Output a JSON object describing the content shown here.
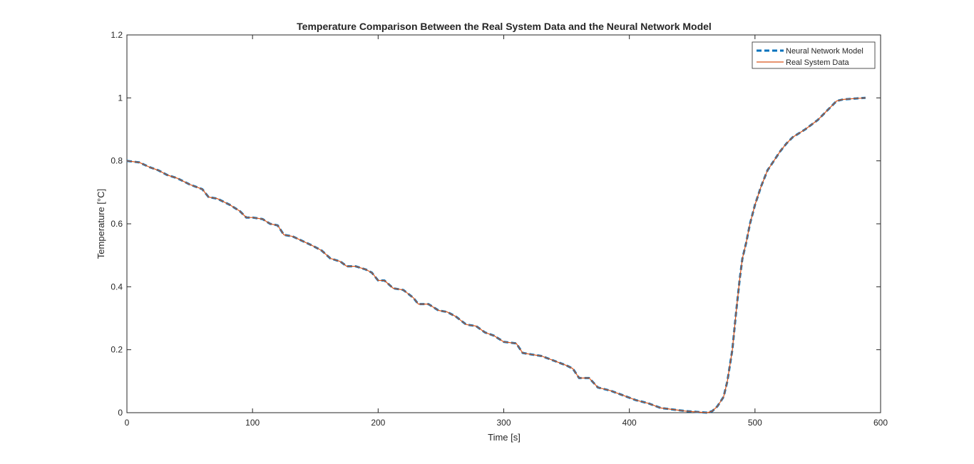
{
  "chart_data": {
    "type": "line",
    "title": "Temperature Comparison Between the Real System Data and the Neural Network Model",
    "xlabel": "Time [s]",
    "ylabel": "Temperature [°C]",
    "xlim": [
      0,
      600
    ],
    "ylim": [
      0,
      1.2
    ],
    "xticks": [
      0,
      100,
      200,
      300,
      400,
      500,
      600
    ],
    "xtick_labels": [
      "0",
      "100",
      "200",
      "300",
      "400",
      "500",
      "600"
    ],
    "yticks": [
      0,
      0.2,
      0.4,
      0.6,
      0.8,
      1,
      1.2
    ],
    "ytick_labels": [
      "0",
      "0.2",
      "0.4",
      "0.6",
      "0.8",
      "1",
      "1.2"
    ],
    "grid": false,
    "legend_position": "top-right",
    "series": [
      {
        "name": "Neural Network Model",
        "color": "#0072BD",
        "style": "dashed",
        "x": [
          0,
          10,
          18,
          25,
          32,
          40,
          50,
          60,
          65,
          72,
          82,
          90,
          95,
          100,
          108,
          114,
          120,
          125,
          132,
          140,
          148,
          155,
          162,
          170,
          175,
          182,
          190,
          195,
          200,
          205,
          212,
          220,
          228,
          232,
          240,
          248,
          255,
          262,
          270,
          278,
          285,
          292,
          300,
          310,
          315,
          322,
          330,
          340,
          350,
          355,
          360,
          368,
          375,
          385,
          395,
          405,
          415,
          425,
          435,
          445,
          455,
          462,
          466,
          470,
          475,
          478,
          482,
          485,
          488,
          490,
          493,
          496,
          500,
          505,
          510,
          515,
          520,
          525,
          530,
          540,
          550,
          560,
          565,
          570,
          580,
          588
        ],
        "y": [
          0.8,
          0.795,
          0.78,
          0.77,
          0.755,
          0.745,
          0.725,
          0.71,
          0.685,
          0.68,
          0.66,
          0.64,
          0.62,
          0.62,
          0.615,
          0.6,
          0.595,
          0.565,
          0.56,
          0.545,
          0.53,
          0.515,
          0.49,
          0.48,
          0.465,
          0.465,
          0.455,
          0.445,
          0.42,
          0.42,
          0.395,
          0.39,
          0.365,
          0.345,
          0.345,
          0.325,
          0.32,
          0.305,
          0.28,
          0.275,
          0.255,
          0.245,
          0.225,
          0.22,
          0.19,
          0.185,
          0.18,
          0.165,
          0.15,
          0.14,
          0.11,
          0.11,
          0.08,
          0.07,
          0.055,
          0.04,
          0.03,
          0.015,
          0.01,
          0.005,
          0.002,
          0.0,
          0.005,
          0.02,
          0.05,
          0.1,
          0.2,
          0.32,
          0.43,
          0.49,
          0.54,
          0.6,
          0.66,
          0.72,
          0.77,
          0.8,
          0.83,
          0.855,
          0.875,
          0.9,
          0.93,
          0.97,
          0.99,
          0.995,
          0.998,
          1.0
        ]
      },
      {
        "name": "Real System Data",
        "color": "#D95319",
        "style": "solid",
        "x": [
          0,
          10,
          18,
          25,
          32,
          40,
          50,
          60,
          65,
          72,
          82,
          90,
          95,
          100,
          108,
          114,
          120,
          125,
          132,
          140,
          148,
          155,
          162,
          170,
          175,
          182,
          190,
          195,
          200,
          205,
          212,
          220,
          228,
          232,
          240,
          248,
          255,
          262,
          270,
          278,
          285,
          292,
          300,
          310,
          315,
          322,
          330,
          340,
          350,
          355,
          360,
          368,
          375,
          385,
          395,
          405,
          415,
          425,
          435,
          445,
          455,
          462,
          466,
          470,
          475,
          478,
          482,
          485,
          488,
          490,
          493,
          496,
          500,
          505,
          510,
          515,
          520,
          525,
          530,
          540,
          550,
          560,
          565,
          570,
          580,
          588
        ],
        "y": [
          0.8,
          0.795,
          0.78,
          0.77,
          0.755,
          0.745,
          0.725,
          0.71,
          0.685,
          0.68,
          0.66,
          0.64,
          0.62,
          0.62,
          0.615,
          0.6,
          0.595,
          0.565,
          0.56,
          0.545,
          0.53,
          0.515,
          0.49,
          0.48,
          0.465,
          0.465,
          0.455,
          0.445,
          0.42,
          0.42,
          0.395,
          0.39,
          0.365,
          0.345,
          0.345,
          0.325,
          0.32,
          0.305,
          0.28,
          0.275,
          0.255,
          0.245,
          0.225,
          0.22,
          0.19,
          0.185,
          0.18,
          0.165,
          0.15,
          0.14,
          0.11,
          0.11,
          0.08,
          0.07,
          0.055,
          0.04,
          0.03,
          0.015,
          0.01,
          0.005,
          0.002,
          0.0,
          0.005,
          0.02,
          0.05,
          0.1,
          0.2,
          0.32,
          0.43,
          0.49,
          0.54,
          0.6,
          0.66,
          0.72,
          0.77,
          0.8,
          0.83,
          0.855,
          0.875,
          0.9,
          0.93,
          0.97,
          0.99,
          0.995,
          0.998,
          1.0
        ]
      }
    ]
  }
}
